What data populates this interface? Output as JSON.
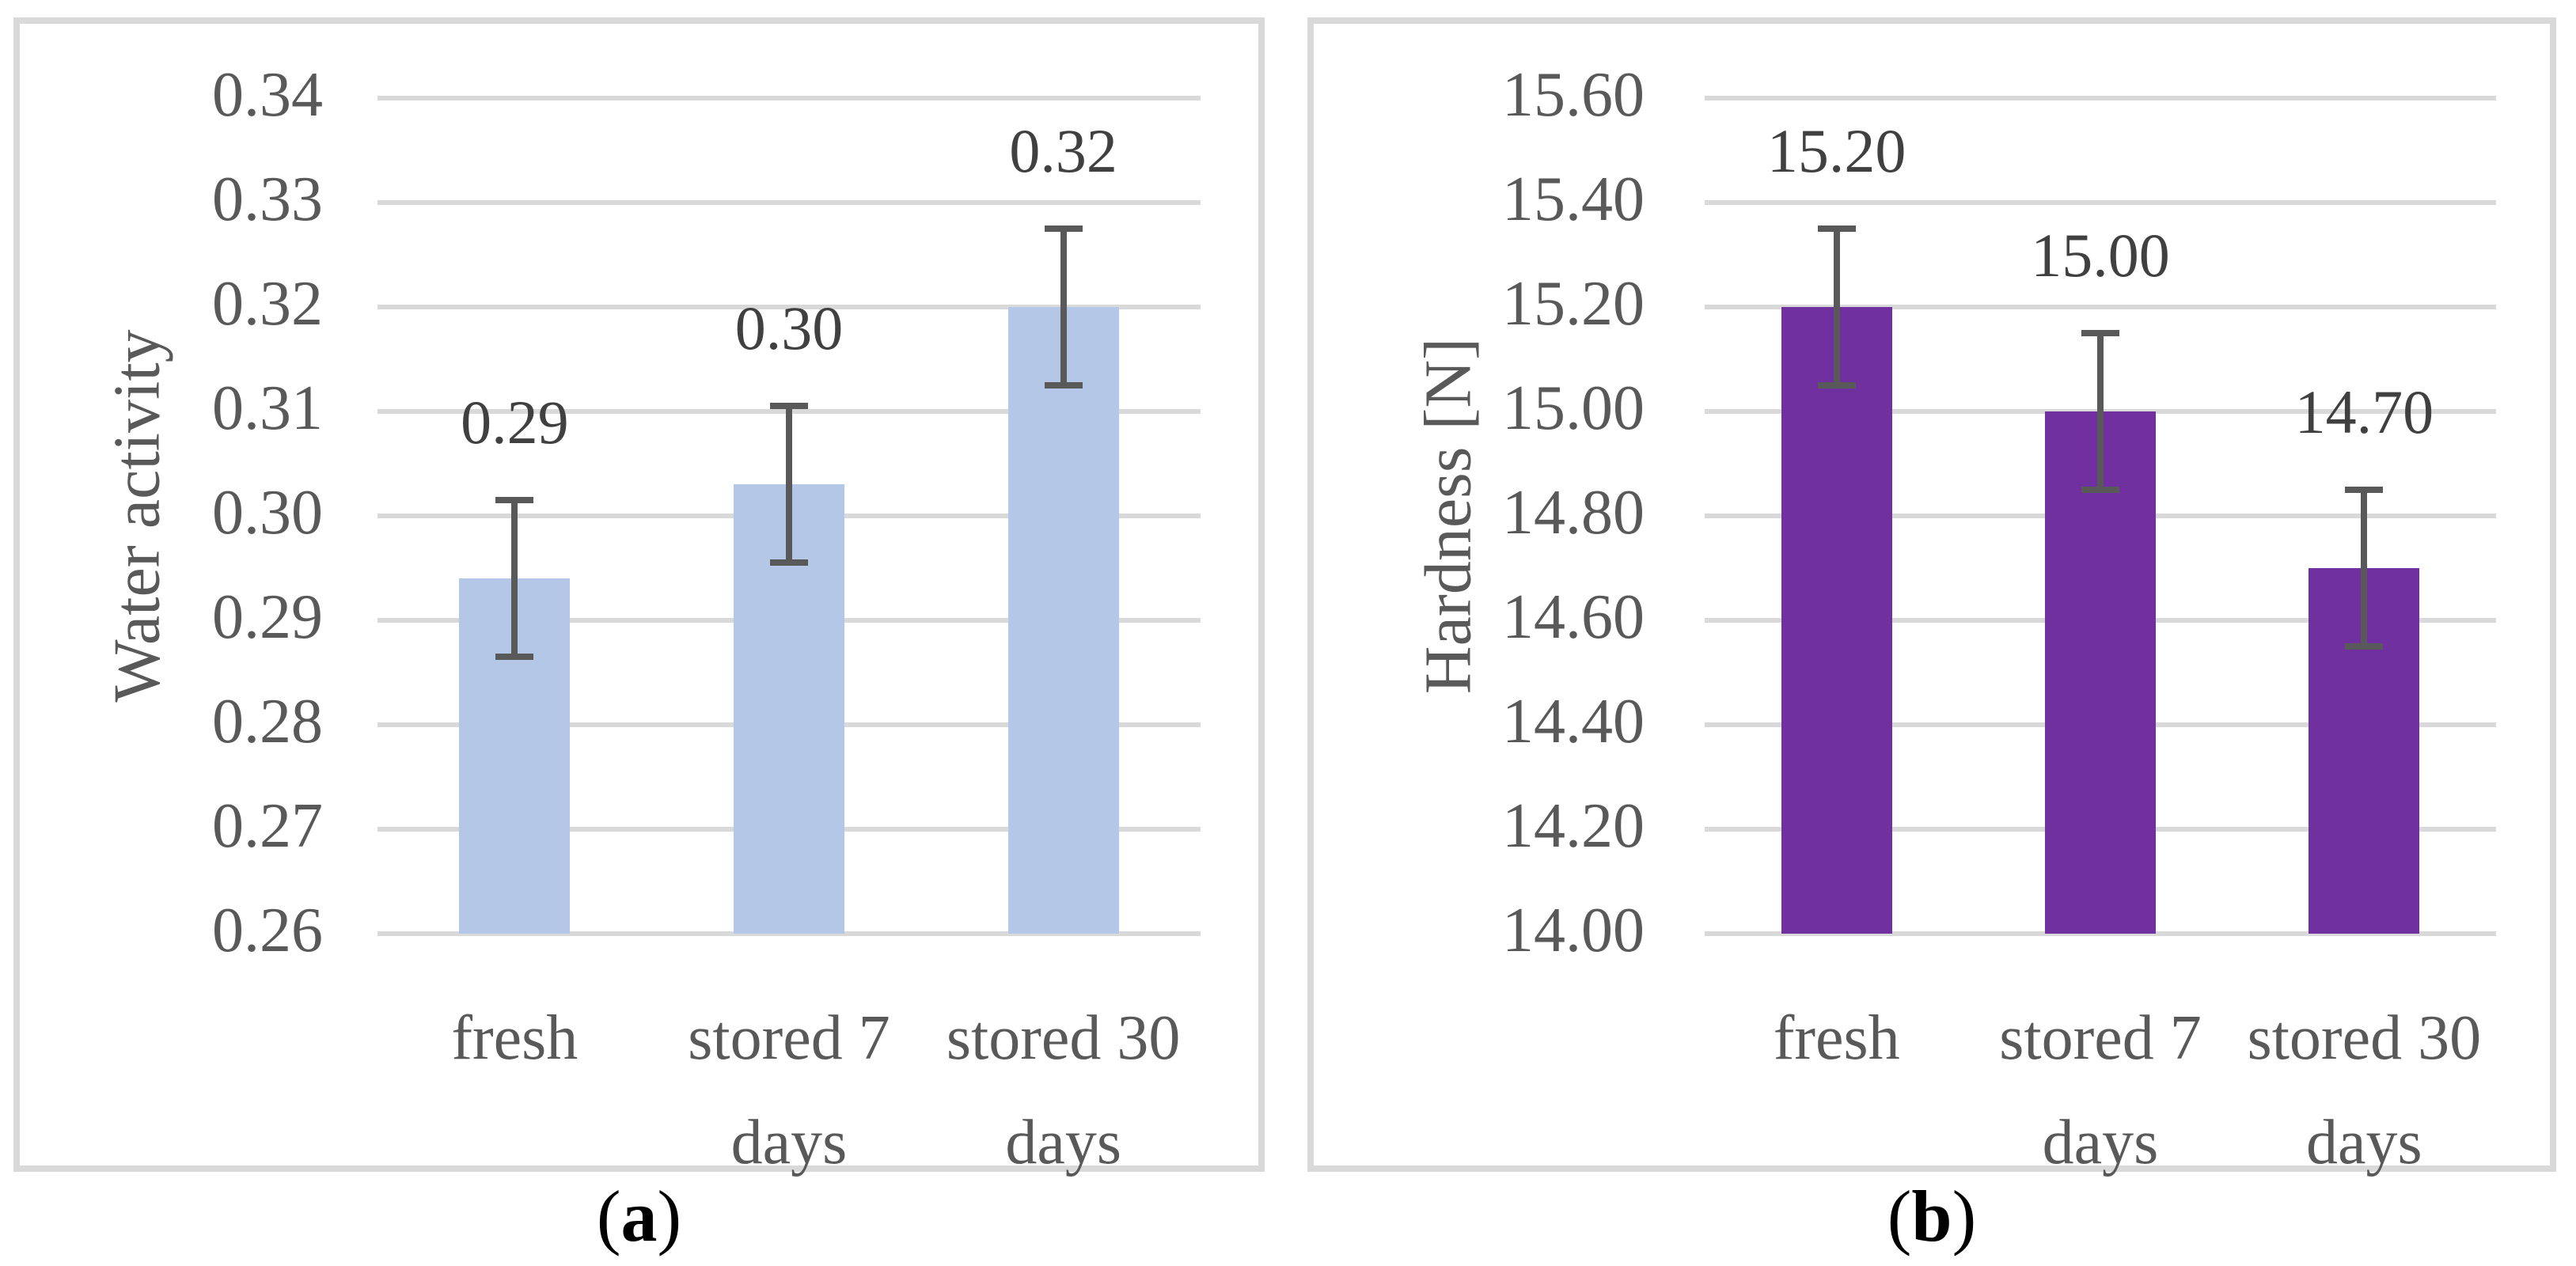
{
  "captions": {
    "a": {
      "open": "(",
      "letter": "a",
      "close": ")"
    },
    "b": {
      "open": "(",
      "letter": "b",
      "close": ")"
    }
  },
  "chart_data": [
    {
      "id": "a",
      "type": "bar",
      "title": "",
      "xlabel": "",
      "ylabel": "Water activity",
      "categories": [
        "fresh",
        "stored 7 days",
        "stored 30 days"
      ],
      "values": [
        0.294,
        0.303,
        0.32
      ],
      "data_labels": [
        "0.29",
        "0.30",
        "0.32"
      ],
      "error_low": [
        0.2865,
        0.2955,
        0.3125
      ],
      "error_high": [
        0.3015,
        0.3105,
        0.3275
      ],
      "ylim": [
        0.26,
        0.34
      ],
      "yticks": [
        "0.34",
        "0.33",
        "0.32",
        "0.31",
        "0.30",
        "0.29",
        "0.28",
        "0.27",
        "0.26"
      ],
      "grid": true,
      "legend": false,
      "bar_color": "#b4c7e7",
      "error_color": "#595959",
      "gridline_color": "#d9d9d9",
      "tick_color": "#595959",
      "label_color": "#404040"
    },
    {
      "id": "b",
      "type": "bar",
      "title": "",
      "xlabel": "",
      "ylabel": "Hardness [N]",
      "categories": [
        "fresh",
        "stored 7 days",
        "stored 30 days"
      ],
      "values": [
        15.2,
        15.0,
        14.7
      ],
      "data_labels": [
        "15.20",
        "15.00",
        "14.70"
      ],
      "error_low": [
        15.05,
        14.85,
        14.55
      ],
      "error_high": [
        15.35,
        15.15,
        14.85
      ],
      "ylim": [
        14.0,
        15.6
      ],
      "yticks": [
        "15.60",
        "15.40",
        "15.20",
        "15.00",
        "14.80",
        "14.60",
        "14.40",
        "14.20",
        "14.00"
      ],
      "grid": true,
      "legend": false,
      "bar_color": "#7030a0",
      "error_color": "#595959",
      "gridline_color": "#d9d9d9",
      "tick_color": "#595959",
      "label_color": "#404040"
    }
  ]
}
